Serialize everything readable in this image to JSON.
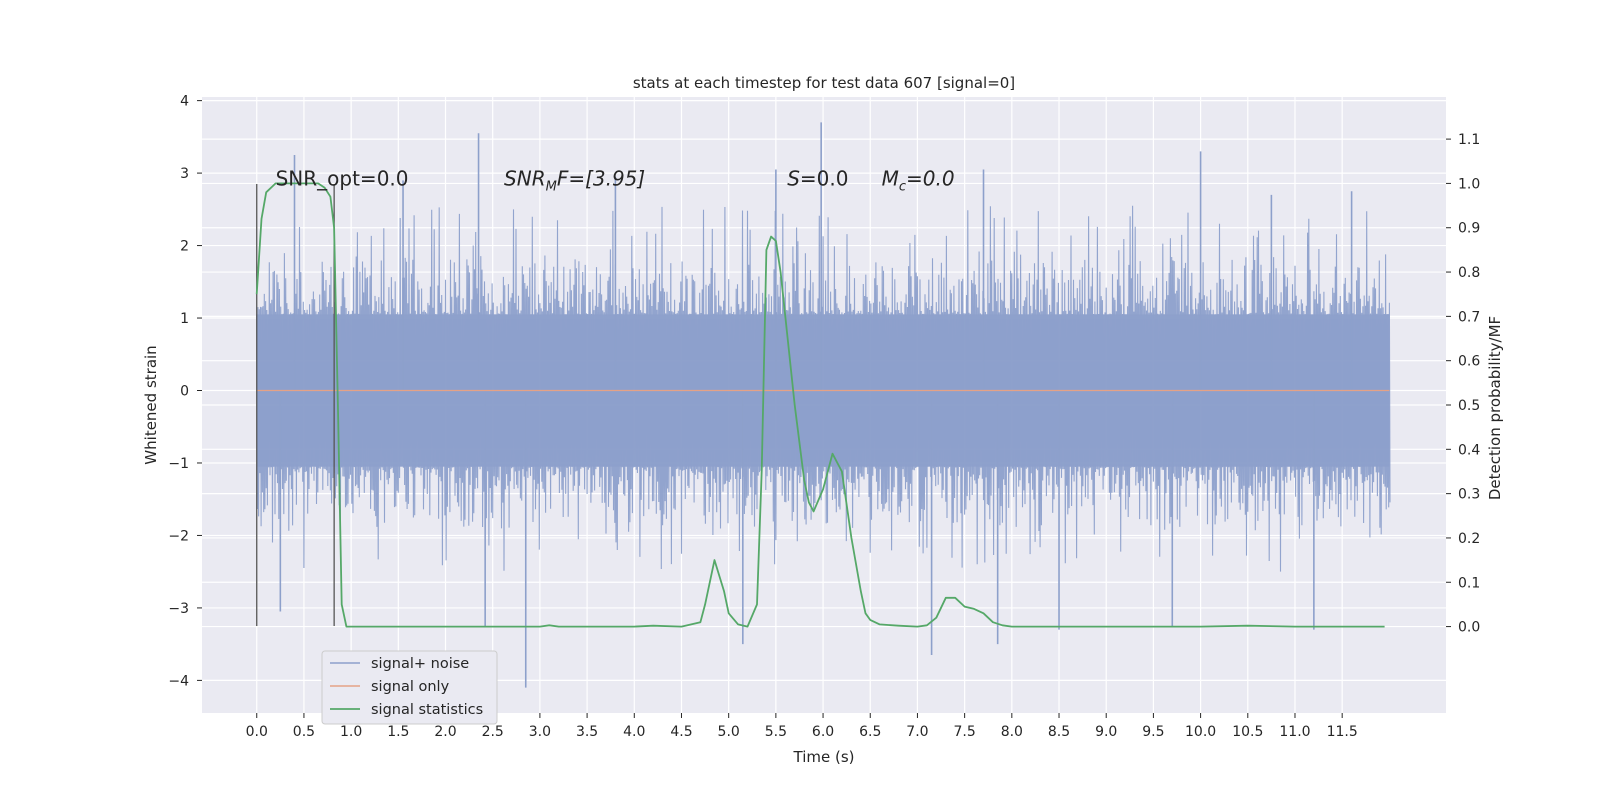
{
  "chart_data": {
    "type": "line",
    "title": "stats at each timestep for test data 607 [signal=0]",
    "xlabel": "Time (s)",
    "ylabel": "Whitened strain",
    "y2label": "Detection probability/MF",
    "xlim": [
      -0.58,
      12.6
    ],
    "ylim": [
      -4.45,
      4.05
    ],
    "y2lim": [
      -0.195,
      1.195
    ],
    "x_ticks": [
      0.0,
      0.5,
      1.0,
      1.5,
      2.0,
      2.5,
      3.0,
      3.5,
      4.0,
      4.5,
      5.0,
      5.5,
      6.0,
      6.5,
      7.0,
      7.5,
      8.0,
      8.5,
      9.0,
      9.5,
      10.0,
      10.5,
      11.0,
      11.5
    ],
    "x_tick_labels": [
      "0.0",
      "0.5",
      "1.0",
      "1.5",
      "2.0",
      "2.5",
      "3.0",
      "3.5",
      "4.0",
      "4.5",
      "5.0",
      "5.5",
      "6.0",
      "6.5",
      "7.0",
      "7.5",
      "8.0",
      "8.5",
      "9.0",
      "9.5",
      "10.0",
      "10.5",
      "11.0",
      "11.5"
    ],
    "y_ticks": [
      -4,
      -3,
      -2,
      -1,
      0,
      1,
      2,
      3,
      4
    ],
    "y_tick_labels": [
      "−4",
      "−3",
      "−2",
      "−1",
      "0",
      "1",
      "2",
      "3",
      "4"
    ],
    "y2_ticks": [
      0.0,
      0.1,
      0.2,
      0.3,
      0.4,
      0.5,
      0.6,
      0.7,
      0.8,
      0.9,
      1.0,
      1.1
    ],
    "y2_tick_labels": [
      "0.0",
      "0.1",
      "0.2",
      "0.3",
      "0.4",
      "0.5",
      "0.6",
      "0.7",
      "0.8",
      "0.9",
      "1.0",
      "1.1"
    ],
    "grid": true,
    "legend_position": "lower-left",
    "annotations": [
      {
        "base": "SNR_opt=0.0",
        "sub": "",
        "suffix": "",
        "x": 0.2
      },
      {
        "base": "SNR",
        "sub": "M",
        "suffix": "F=[3.95]",
        "x": 2.62
      },
      {
        "base": "S",
        "sub": "",
        "suffix": "=0.0",
        "x": 5.62
      },
      {
        "base": "M",
        "sub": "c",
        "suffix": "=0.0",
        "x": 6.62
      }
    ],
    "annotation_y": 2.9,
    "vertical_markers": [
      {
        "x": 0.0,
        "y": [
          -3.25,
          2.85
        ]
      },
      {
        "x": 0.82,
        "y": [
          -3.25,
          2.85
        ]
      }
    ],
    "series": [
      {
        "name": "signal+ noise",
        "color": "#8da0cb",
        "style": "noise",
        "x_range": [
          0.0,
          12.0
        ],
        "envelope_upper": 1.05,
        "envelope_lower": -1.05,
        "typical_peak_upper": 1.85,
        "typical_peak_lower": -1.9,
        "extreme_peaks": [
          {
            "x": 0.4,
            "y": 3.25
          },
          {
            "x": 1.55,
            "y": 2.9
          },
          {
            "x": 2.35,
            "y": 3.55
          },
          {
            "x": 3.8,
            "y": 2.95
          },
          {
            "x": 5.5,
            "y": 3.05
          },
          {
            "x": 5.98,
            "y": 3.7
          },
          {
            "x": 7.7,
            "y": 3.05
          },
          {
            "x": 10.0,
            "y": 3.3
          },
          {
            "x": 10.75,
            "y": 2.7
          },
          {
            "x": 11.6,
            "y": 2.75
          },
          {
            "x": 0.25,
            "y": -3.05
          },
          {
            "x": 2.42,
            "y": -3.25
          },
          {
            "x": 2.85,
            "y": -4.1
          },
          {
            "x": 5.15,
            "y": -3.5
          },
          {
            "x": 7.15,
            "y": -3.65
          },
          {
            "x": 7.85,
            "y": -3.5
          },
          {
            "x": 8.5,
            "y": -3.3
          },
          {
            "x": 9.7,
            "y": -3.25
          },
          {
            "x": 11.2,
            "y": -3.3
          }
        ]
      },
      {
        "name": "signal only",
        "color": "#e5a286",
        "x": [
          0.0,
          12.0
        ],
        "y": [
          0.0,
          0.0
        ]
      },
      {
        "name": "signal statistics",
        "color": "#55a868",
        "axis": "right",
        "x": [
          0.0,
          0.05,
          0.1,
          0.2,
          0.3,
          0.4,
          0.5,
          0.6,
          0.65,
          0.72,
          0.78,
          0.82,
          0.86,
          0.9,
          0.95,
          1.0,
          1.2,
          1.5,
          2.0,
          2.5,
          3.0,
          3.1,
          3.2,
          3.5,
          4.0,
          4.2,
          4.5,
          4.7,
          4.75,
          4.85,
          4.95,
          5.0,
          5.1,
          5.2,
          5.3,
          5.35,
          5.4,
          5.45,
          5.5,
          5.55,
          5.6,
          5.7,
          5.8,
          5.85,
          5.9,
          6.0,
          6.1,
          6.2,
          6.3,
          6.4,
          6.45,
          6.5,
          6.6,
          6.8,
          7.0,
          7.1,
          7.2,
          7.3,
          7.4,
          7.5,
          7.6,
          7.7,
          7.8,
          7.9,
          8.0,
          8.5,
          9.0,
          10.0,
          10.5,
          11.0,
          11.5,
          11.95
        ],
        "y": [
          0.75,
          0.92,
          0.98,
          1.0,
          1.0,
          1.0,
          1.0,
          1.0,
          1.0,
          0.99,
          0.97,
          0.9,
          0.5,
          0.05,
          0.0,
          0.0,
          0.0,
          0.0,
          0.0,
          0.0,
          0.0,
          0.003,
          0.0,
          0.0,
          0.0,
          0.002,
          0.0,
          0.01,
          0.05,
          0.15,
          0.08,
          0.03,
          0.005,
          0.0,
          0.05,
          0.35,
          0.85,
          0.88,
          0.87,
          0.8,
          0.7,
          0.5,
          0.33,
          0.28,
          0.26,
          0.31,
          0.39,
          0.35,
          0.2,
          0.08,
          0.03,
          0.015,
          0.005,
          0.002,
          0.0,
          0.003,
          0.02,
          0.065,
          0.065,
          0.045,
          0.04,
          0.03,
          0.01,
          0.003,
          0.0,
          0.0,
          0.0,
          0.0,
          0.002,
          0.0,
          0.0,
          0.0
        ]
      }
    ]
  }
}
